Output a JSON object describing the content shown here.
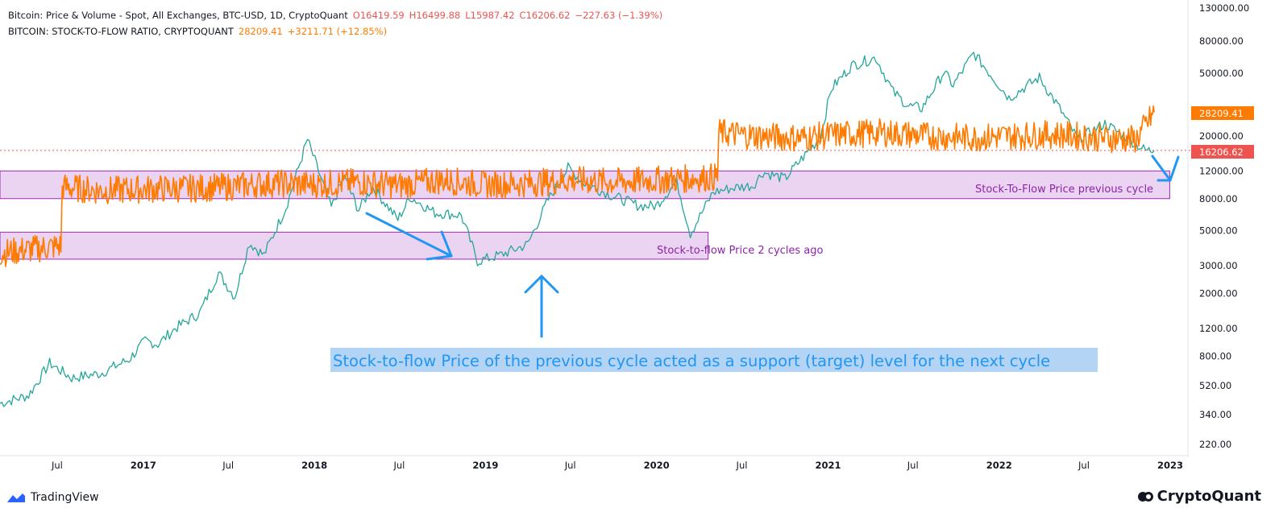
{
  "legend": {
    "line1": {
      "title": "Bitcoin: Price & Volume - Spot, All Exchanges, BTC-USD, 1D, CryptoQuant",
      "open": "O16419.59",
      "high": "H16499.88",
      "low": "L15987.42",
      "close": "C16206.62",
      "change": "−227.63 (−1.39%)"
    },
    "line2": {
      "title": "BITCOIN: STOCK-TO-FLOW RATIO, CRYPTOQUANT",
      "value": "28209.41",
      "change": "+3211.71 (+12.85%)"
    }
  },
  "annotations": {
    "box1_label": "Stock-To-Flow Price previous cycle",
    "box2_label": "Stock-to-flow Price 2 cycles ago",
    "main_note": "Stock-to-flow Price of the previous cycle acted as a support (target) level for the next cycle"
  },
  "price_tags": {
    "s2f": "28209.41",
    "price": "16206.62"
  },
  "footer": {
    "left_brand": "TradingView",
    "right_brand": "CryptoQuant"
  },
  "colors": {
    "price_up": "#26a69a",
    "price_down": "#ef5350",
    "s2f": "#ff7a00",
    "box_fill": "#e6cdf0",
    "box_stroke": "#9c27b0",
    "arrow": "#2196f3",
    "note_bg": "#b3d4f5",
    "note_text": "#2196f3"
  },
  "chart_data": {
    "type": "line",
    "y_scale": "log",
    "ylim": [
      200,
      130000
    ],
    "xlim": [
      "2016-03-01",
      "2023-02-01"
    ],
    "y_ticks": [
      "130000.00",
      "80000.00",
      "50000.00",
      "20000.00",
      "12000.00",
      "8000.00",
      "5000.00",
      "3000.00",
      "2000.00",
      "1200.00",
      "800.00",
      "520.00",
      "340.00",
      "220.00"
    ],
    "x_ticks": [
      {
        "label": "Jul",
        "date": "2016-07-01"
      },
      {
        "label": "2017",
        "date": "2017-01-01"
      },
      {
        "label": "Jul",
        "date": "2017-07-01"
      },
      {
        "label": "2018",
        "date": "2018-01-01"
      },
      {
        "label": "Jul",
        "date": "2018-07-01"
      },
      {
        "label": "2019",
        "date": "2019-01-01"
      },
      {
        "label": "Jul",
        "date": "2019-07-01"
      },
      {
        "label": "2020",
        "date": "2020-01-01"
      },
      {
        "label": "Jul",
        "date": "2020-07-01"
      },
      {
        "label": "2021",
        "date": "2021-01-01"
      },
      {
        "label": "Jul",
        "date": "2021-07-01"
      },
      {
        "label": "2022",
        "date": "2022-01-01"
      },
      {
        "label": "Jul",
        "date": "2022-07-01"
      },
      {
        "label": "2023",
        "date": "2023-01-01"
      }
    ],
    "series": [
      {
        "color": "#26a69a",
        "points": [
          [
            "2016-03-01",
            400
          ],
          [
            "2016-05-01",
            450
          ],
          [
            "2016-06-15",
            720
          ],
          [
            "2016-08-01",
            580
          ],
          [
            "2016-10-01",
            620
          ],
          [
            "2016-12-01",
            760
          ],
          [
            "2017-01-05",
            1000
          ],
          [
            "2017-02-01",
            950
          ],
          [
            "2017-03-10",
            1200
          ],
          [
            "2017-05-01",
            1500
          ],
          [
            "2017-06-10",
            2700
          ],
          [
            "2017-07-15",
            1900
          ],
          [
            "2017-08-15",
            4200
          ],
          [
            "2017-09-15",
            3500
          ],
          [
            "2017-11-01",
            7000
          ],
          [
            "2017-12-17",
            19000
          ],
          [
            "2018-02-06",
            7000
          ],
          [
            "2018-03-05",
            11000
          ],
          [
            "2018-04-05",
            6800
          ],
          [
            "2018-05-05",
            9500
          ],
          [
            "2018-06-28",
            5900
          ],
          [
            "2018-07-25",
            8200
          ],
          [
            "2018-09-15",
            6500
          ],
          [
            "2018-11-10",
            6300
          ],
          [
            "2018-12-15",
            3200
          ],
          [
            "2019-02-01",
            3500
          ],
          [
            "2019-04-01",
            4100
          ],
          [
            "2019-05-15",
            7900
          ],
          [
            "2019-06-26",
            12500
          ],
          [
            "2019-08-01",
            10000
          ],
          [
            "2019-09-30",
            8300
          ],
          [
            "2019-11-25",
            7200
          ],
          [
            "2019-12-31",
            7200
          ],
          [
            "2020-02-13",
            10300
          ],
          [
            "2020-03-13",
            4800
          ],
          [
            "2020-05-01",
            8800
          ],
          [
            "2020-06-15",
            9400
          ],
          [
            "2020-07-25",
            9700
          ],
          [
            "2020-08-15",
            11800
          ],
          [
            "2020-10-01",
            10700
          ],
          [
            "2020-11-01",
            13800
          ],
          [
            "2020-12-15",
            19500
          ],
          [
            "2021-01-08",
            40000
          ],
          [
            "2021-02-20",
            56000
          ],
          [
            "2021-04-13",
            63000
          ],
          [
            "2021-05-20",
            38000
          ],
          [
            "2021-06-22",
            31000
          ],
          [
            "2021-07-20",
            30000
          ],
          [
            "2021-09-05",
            51000
          ],
          [
            "2021-09-25",
            42000
          ],
          [
            "2021-11-08",
            67000
          ],
          [
            "2022-01-22",
            35000
          ],
          [
            "2022-03-28",
            47000
          ],
          [
            "2022-05-10",
            30000
          ],
          [
            "2022-06-18",
            19000
          ],
          [
            "2022-08-15",
            24000
          ],
          [
            "2022-10-01",
            19400
          ],
          [
            "2022-11-09",
            16200
          ],
          [
            "2022-11-28",
            16200
          ]
        ]
      },
      {
        "color": "#ff7a00",
        "points": [
          [
            "2016-03-01",
            3600
          ],
          [
            "2016-05-01",
            3800
          ],
          [
            "2016-07-09",
            4000
          ],
          [
            "2016-07-12",
            9500
          ],
          [
            "2016-10-01",
            9000
          ],
          [
            "2017-01-01",
            9200
          ],
          [
            "2017-04-01",
            9300
          ],
          [
            "2017-07-01",
            9500
          ],
          [
            "2017-10-01",
            10000
          ],
          [
            "2018-01-01",
            9800
          ],
          [
            "2018-04-01",
            10200
          ],
          [
            "2018-07-01",
            9700
          ],
          [
            "2018-10-01",
            10500
          ],
          [
            "2019-01-01",
            9800
          ],
          [
            "2019-04-01",
            10000
          ],
          [
            "2019-07-01",
            10500
          ],
          [
            "2019-10-01",
            10200
          ],
          [
            "2020-01-01",
            10500
          ],
          [
            "2020-04-01",
            10800
          ],
          [
            "2020-05-10",
            11000
          ],
          [
            "2020-05-13",
            21000
          ],
          [
            "2020-08-01",
            20000
          ],
          [
            "2020-11-01",
            19500
          ],
          [
            "2021-02-01",
            20500
          ],
          [
            "2021-05-01",
            21000
          ],
          [
            "2021-08-01",
            20000
          ],
          [
            "2021-11-01",
            19500
          ],
          [
            "2022-02-01",
            20000
          ],
          [
            "2022-05-01",
            20500
          ],
          [
            "2022-08-01",
            19500
          ],
          [
            "2022-10-20",
            19000
          ],
          [
            "2022-11-28",
            28209
          ]
        ]
      }
    ],
    "bands": [
      {
        "label": "Stock-To-Flow Price previous cycle",
        "y_range": [
          8000,
          12000
        ],
        "x_range": [
          "2016-03-01",
          "2022-12-31"
        ]
      },
      {
        "label": "Stock-to-flow Price 2 cycles ago",
        "y_range": [
          3300,
          4900
        ],
        "x_range": [
          "2016-03-01",
          "2020-04-20"
        ]
      }
    ]
  }
}
